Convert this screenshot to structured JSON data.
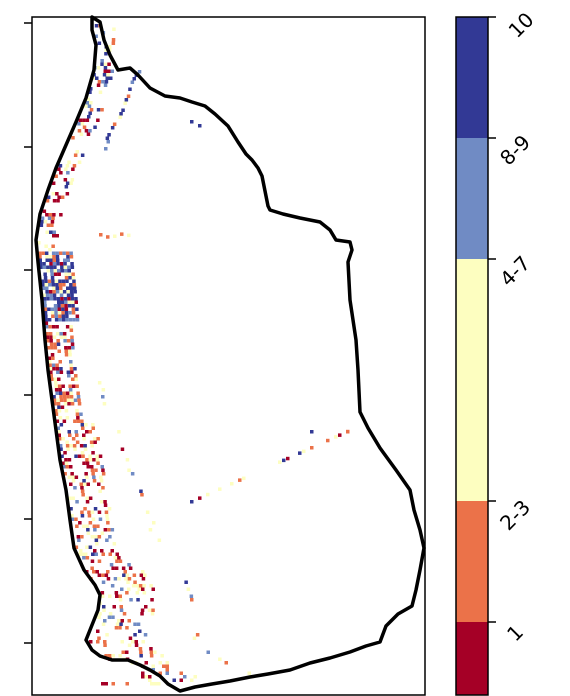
{
  "colorbar": {
    "classes": [
      {
        "label": "1",
        "color": "#a50026"
      },
      {
        "label": "2-3",
        "color": "#eb7249"
      },
      {
        "label": "4-7",
        "color": "#fdfec0"
      },
      {
        "label": "8-9",
        "color": "#708bc4"
      },
      {
        "label": "10",
        "color": "#323995"
      }
    ]
  },
  "map": {
    "boundary_color": "#000000",
    "background": "#ffffff"
  }
}
